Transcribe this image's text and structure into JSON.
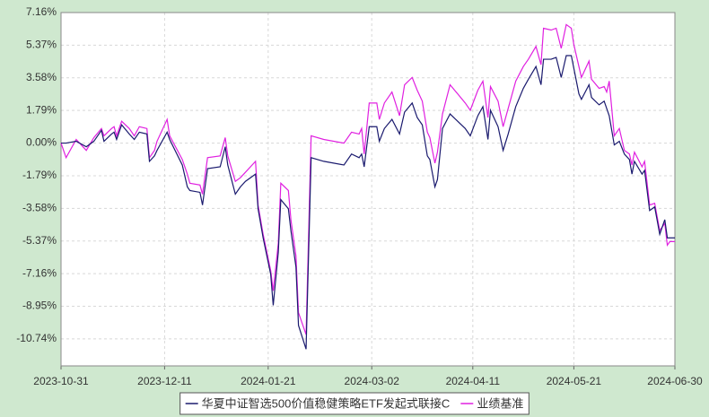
{
  "chart_data": {
    "type": "line",
    "x": [
      "2023-10-31",
      "2023-11-02",
      "2023-11-06",
      "2023-11-10",
      "2023-11-13",
      "2023-11-16",
      "2023-11-17",
      "2023-11-20",
      "2023-11-21",
      "2023-11-22",
      "2023-11-24",
      "2023-11-27",
      "2023-11-29",
      "2023-12-01",
      "2023-12-04",
      "2023-12-05",
      "2023-12-07",
      "2023-12-08",
      "2023-12-12",
      "2023-12-13",
      "2023-12-18",
      "2023-12-20",
      "2023-12-21",
      "2023-12-25",
      "2023-12-26",
      "2023-12-28",
      "2024-01-02",
      "2024-01-04",
      "2024-01-05",
      "2024-01-08",
      "2024-01-10",
      "2024-01-12",
      "2024-01-16",
      "2024-01-17",
      "2024-01-19",
      "2024-01-22",
      "2024-01-23",
      "2024-01-25",
      "2024-01-26",
      "2024-01-29",
      "2024-01-30",
      "2024-02-01",
      "2024-02-02",
      "2024-02-05",
      "2024-02-07",
      "2024-02-12",
      "2024-02-20",
      "2024-02-23",
      "2024-02-26",
      "2024-02-27",
      "2024-02-28",
      "2024-03-01",
      "2024-03-04",
      "2024-03-05",
      "2024-03-07",
      "2024-03-10",
      "2024-03-13",
      "2024-03-15",
      "2024-03-18",
      "2024-03-20",
      "2024-03-22",
      "2024-03-24",
      "2024-03-25",
      "2024-03-27",
      "2024-03-28",
      "2024-03-30",
      "2024-04-02",
      "2024-04-05",
      "2024-04-08",
      "2024-04-10",
      "2024-04-13",
      "2024-04-15",
      "2024-04-17",
      "2024-04-18",
      "2024-04-21",
      "2024-04-23",
      "2024-04-25",
      "2024-04-28",
      "2024-05-01",
      "2024-05-03",
      "2024-05-06",
      "2024-05-08",
      "2024-05-09",
      "2024-05-12",
      "2024-05-14",
      "2024-05-16",
      "2024-05-18",
      "2024-05-20",
      "2024-05-21",
      "2024-05-23",
      "2024-05-24",
      "2024-05-27",
      "2024-05-28",
      "2024-05-31",
      "2024-06-02",
      "2024-06-03",
      "2024-06-04",
      "2024-06-06",
      "2024-06-08",
      "2024-06-10",
      "2024-06-12",
      "2024-06-13",
      "2024-06-14",
      "2024-06-17",
      "2024-06-18",
      "2024-06-20",
      "2024-06-22",
      "2024-06-24",
      "2024-06-26",
      "2024-06-27",
      "2024-06-28",
      "2024-06-30"
    ],
    "series": [
      {
        "name": "华夏中证智选500价值稳健策略ETF发起式联接C",
        "color": "#1a1a6e",
        "values": [
          0,
          0,
          0.1,
          -0.2,
          0.1,
          0.7,
          0.1,
          0.5,
          0.6,
          0.2,
          1.0,
          0.5,
          0.2,
          0.6,
          0.5,
          -1.0,
          -0.7,
          -0.4,
          0.6,
          0.2,
          -1.2,
          -2.4,
          -2.6,
          -2.7,
          -3.4,
          -1.4,
          -1.3,
          -0.2,
          -1.2,
          -2.8,
          -2.4,
          -2.1,
          -1.7,
          -3.6,
          -5.2,
          -7.2,
          -8.9,
          -6.0,
          -3.1,
          -3.6,
          -4.8,
          -6.8,
          -10.0,
          -11.3,
          -0.8,
          -1.0,
          -1.2,
          -0.6,
          -0.8,
          -0.6,
          -1.3,
          0.9,
          0.9,
          0.1,
          0.8,
          1.3,
          0.5,
          1.7,
          2.2,
          1.4,
          1.0,
          -0.7,
          -0.9,
          -2.4,
          -2.0,
          0.8,
          1.6,
          1.2,
          0.8,
          0.4,
          1.5,
          2.0,
          0.2,
          1.8,
          0.9,
          -0.4,
          0.5,
          2.0,
          3.0,
          3.5,
          4.2,
          3.2,
          4.6,
          4.6,
          4.7,
          3.6,
          4.8,
          4.8,
          4.1,
          2.7,
          2.4,
          3.2,
          2.5,
          2.1,
          2.3,
          1.9,
          1.5,
          -0.1,
          0.1,
          -0.6,
          -0.9,
          -1.7,
          -1.0,
          -1.7,
          -1.5,
          -3.7,
          -3.5,
          -5.0,
          -4.2,
          -5.2,
          -5.2,
          -5.2
        ]
      },
      {
        "name": "业绩基准",
        "color": "#e020e0",
        "values": [
          0,
          -0.8,
          0.2,
          -0.4,
          0.3,
          0.8,
          0.4,
          0.8,
          0.9,
          0.4,
          1.2,
          0.8,
          0.4,
          0.9,
          0.8,
          -0.8,
          -0.4,
          0.1,
          1.3,
          0.4,
          -0.9,
          -1.7,
          -2.2,
          -2.3,
          -2.8,
          -0.8,
          -0.7,
          0.3,
          -0.7,
          -2.1,
          -1.9,
          -1.6,
          -1.0,
          -3.4,
          -5.0,
          -7.0,
          -8.1,
          -5.5,
          -2.2,
          -2.6,
          -4.2,
          -6.2,
          -9.3,
          -10.5,
          0.4,
          0.2,
          0.0,
          0.6,
          0.5,
          0.8,
          -0.6,
          2.2,
          2.2,
          1.3,
          2.2,
          2.8,
          1.5,
          3.2,
          3.6,
          2.9,
          2.3,
          0.6,
          0.3,
          -1.1,
          -0.5,
          1.6,
          3.2,
          2.7,
          2.2,
          1.8,
          2.9,
          3.4,
          1.4,
          3.1,
          2.3,
          0.9,
          1.9,
          3.4,
          4.2,
          4.6,
          5.3,
          4.3,
          6.3,
          6.2,
          6.3,
          5.2,
          6.5,
          6.3,
          5.4,
          4.2,
          3.6,
          4.5,
          3.5,
          3.0,
          3.1,
          2.8,
          3.4,
          0.4,
          0.8,
          -0.4,
          -0.6,
          -1.2,
          -0.5,
          -1.3,
          -1.0,
          -3.4,
          -3.3,
          -4.8,
          -4.4,
          -5.6,
          -5.4,
          -5.4
        ]
      }
    ],
    "xlim": [
      "2023-10-31",
      "2024-06-30"
    ],
    "xticks": [
      "2023-10-31",
      "2023-12-11",
      "2024-01-21",
      "2024-03-02",
      "2024-04-11",
      "2024-05-21",
      "2024-06-30"
    ],
    "ylim": [
      -12.22,
      7.16
    ],
    "yticks": [
      {
        "value": 7.16,
        "label": "7.16%"
      },
      {
        "value": 5.37,
        "label": "5.37%"
      },
      {
        "value": 3.58,
        "label": "3.58%"
      },
      {
        "value": 1.79,
        "label": "1.79%"
      },
      {
        "value": 0,
        "label": "0.00%"
      },
      {
        "value": -1.79,
        "label": "-1.79%"
      },
      {
        "value": -3.58,
        "label": "-3.58%"
      },
      {
        "value": -5.37,
        "label": "-5.37%"
      },
      {
        "value": -7.16,
        "label": "-7.16%"
      },
      {
        "value": -8.95,
        "label": "-8.95%"
      },
      {
        "value": -10.74,
        "label": "-10.74%"
      }
    ],
    "grid": true,
    "legend": "bottom"
  }
}
